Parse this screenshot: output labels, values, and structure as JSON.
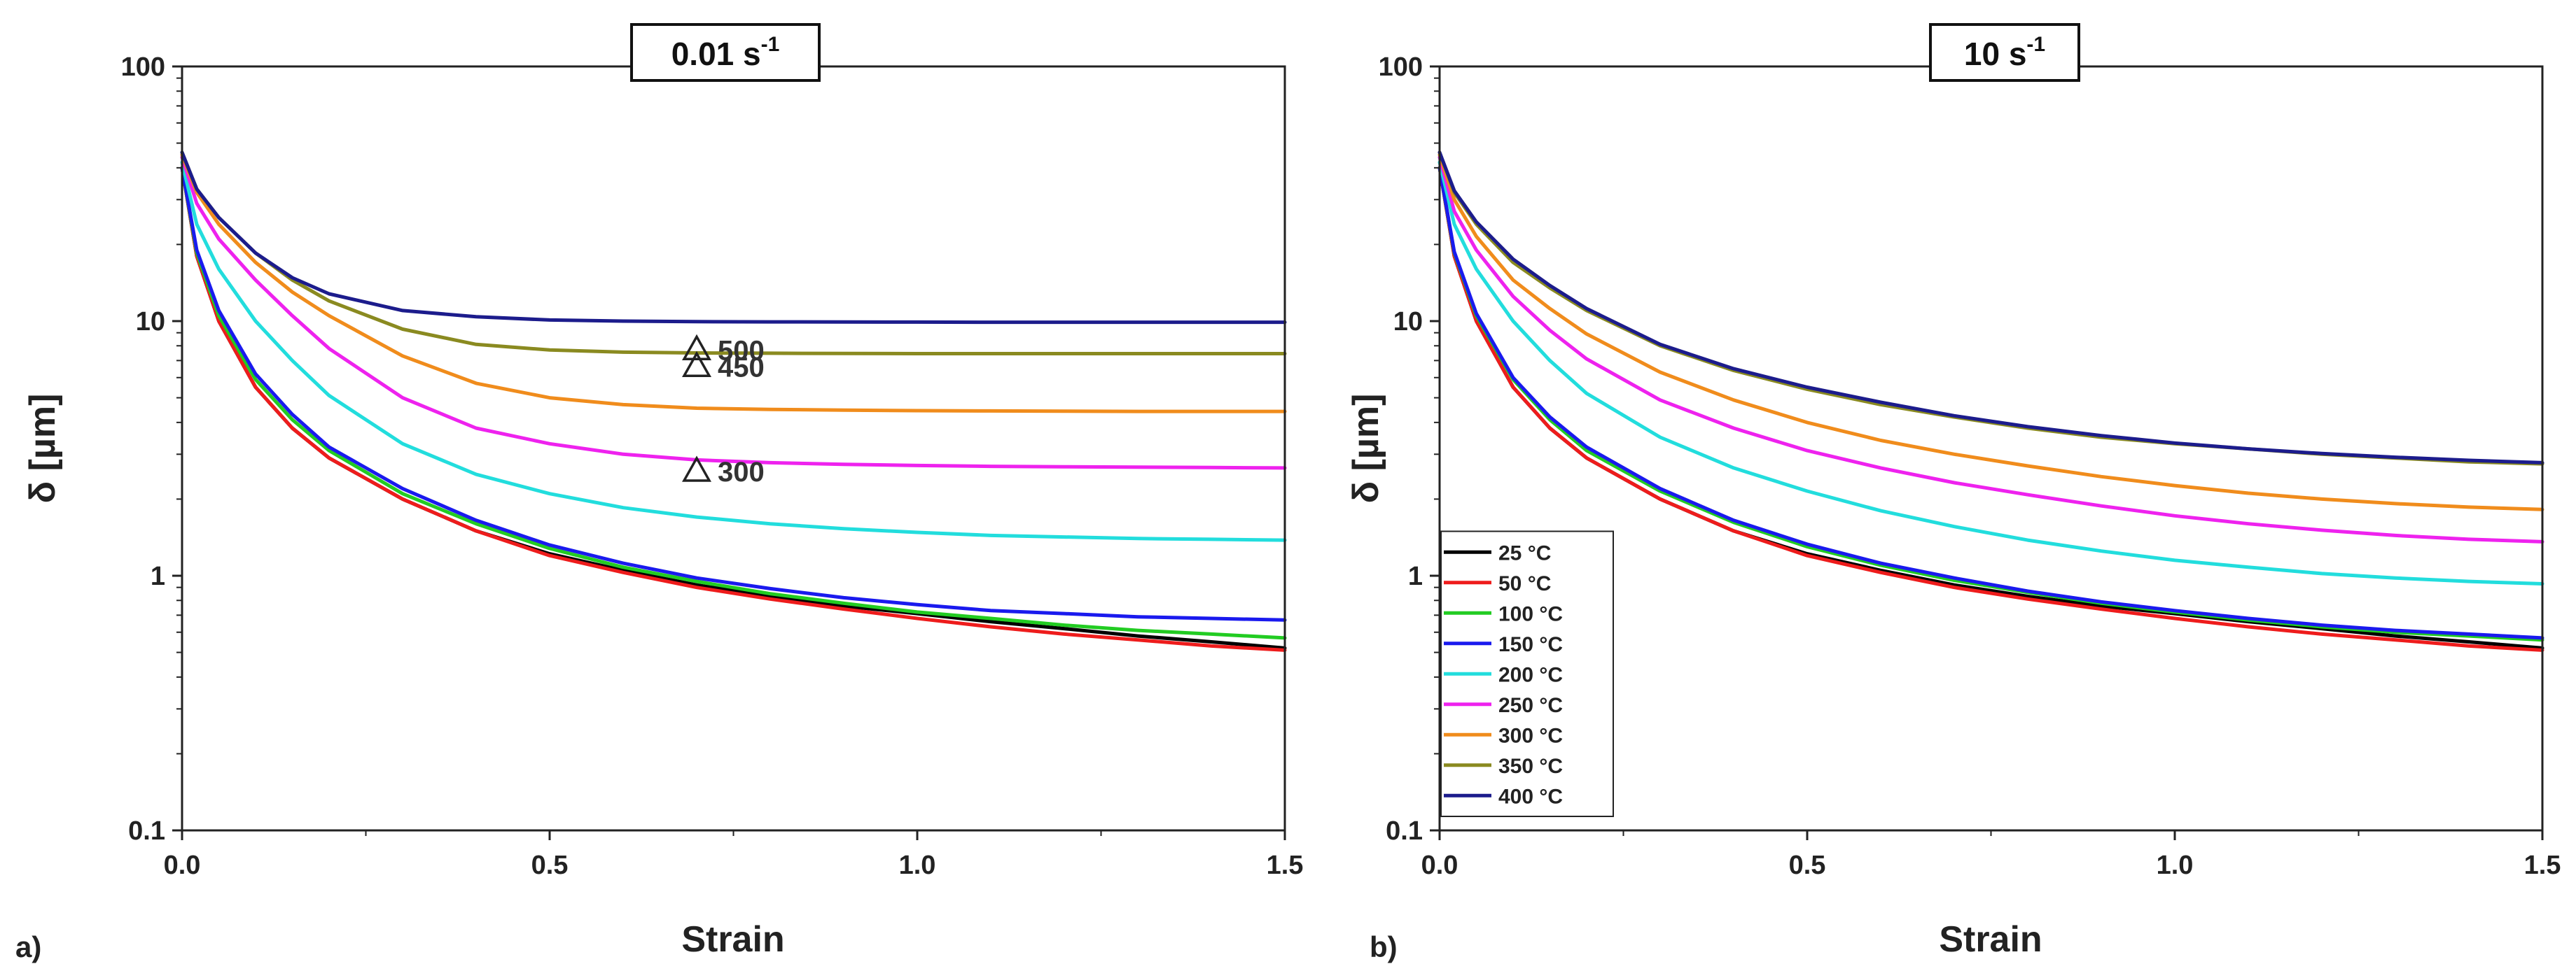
{
  "chart_data": [
    {
      "type": "line",
      "panel_label": "a)",
      "title_main": "0.01 s",
      "title_sup": "-1",
      "xlabel": "Strain",
      "ylabel": "δ [µm]",
      "xlim": [
        0,
        1.5
      ],
      "ylim": [
        0.1,
        100
      ],
      "yscale": "log",
      "xticks": [
        {
          "value": 0,
          "label": "0.0"
        },
        {
          "value": 0.5,
          "label": "0.5"
        },
        {
          "value": 1.0,
          "label": "1.0"
        },
        {
          "value": 1.5,
          "label": "1.5"
        }
      ],
      "yticks": [
        {
          "value": 0.1,
          "label": "0.1"
        },
        {
          "value": 1,
          "label": "1"
        },
        {
          "value": 10,
          "label": "10"
        },
        {
          "value": 100,
          "label": "100"
        }
      ],
      "x": [
        0,
        0.02,
        0.05,
        0.1,
        0.15,
        0.2,
        0.3,
        0.4,
        0.5,
        0.6,
        0.7,
        0.8,
        0.9,
        1.0,
        1.1,
        1.2,
        1.3,
        1.4,
        1.5
      ],
      "series": [
        {
          "name": "25 °C",
          "color": "#000000",
          "values": [
            40,
            18,
            10,
            5.5,
            3.8,
            2.9,
            2.0,
            1.5,
            1.22,
            1.05,
            0.92,
            0.83,
            0.76,
            0.71,
            0.66,
            0.62,
            0.58,
            0.55,
            0.52
          ]
        },
        {
          "name": "50 °C",
          "color": "#ee1c1c",
          "values": [
            40,
            18,
            10,
            5.5,
            3.8,
            2.9,
            2.0,
            1.5,
            1.2,
            1.03,
            0.9,
            0.81,
            0.74,
            0.68,
            0.63,
            0.59,
            0.56,
            0.53,
            0.51
          ]
        },
        {
          "name": "100 °C",
          "color": "#22cc22",
          "values": [
            40,
            18.5,
            10.5,
            5.9,
            4.1,
            3.1,
            2.1,
            1.6,
            1.28,
            1.08,
            0.95,
            0.85,
            0.78,
            0.72,
            0.68,
            0.64,
            0.61,
            0.59,
            0.57
          ]
        },
        {
          "name": "150 °C",
          "color": "#1a1aee",
          "values": [
            40,
            19,
            11,
            6.2,
            4.3,
            3.2,
            2.2,
            1.65,
            1.32,
            1.12,
            0.98,
            0.89,
            0.82,
            0.77,
            0.73,
            0.71,
            0.69,
            0.68,
            0.67
          ]
        },
        {
          "name": "200 °C",
          "color": "#22dddd",
          "values": [
            42,
            24,
            16,
            10,
            7.0,
            5.1,
            3.3,
            2.5,
            2.1,
            1.85,
            1.7,
            1.6,
            1.53,
            1.48,
            1.44,
            1.42,
            1.4,
            1.39,
            1.38
          ]
        },
        {
          "name": "250 °C",
          "color": "#ee22ee",
          "values": [
            44,
            29,
            21,
            14.5,
            10.5,
            7.8,
            5.0,
            3.8,
            3.3,
            3.0,
            2.85,
            2.78,
            2.74,
            2.71,
            2.69,
            2.68,
            2.67,
            2.66,
            2.65
          ]
        },
        {
          "name": "300 °C",
          "color": "#f08c1c",
          "values": [
            45,
            32,
            24,
            17,
            13,
            10.5,
            7.3,
            5.7,
            5.0,
            4.7,
            4.55,
            4.5,
            4.47,
            4.45,
            4.44,
            4.43,
            4.42,
            4.42,
            4.42
          ]
        },
        {
          "name": "350 °C",
          "color": "#8a8a20",
          "values": [
            46,
            33,
            25.5,
            18.5,
            14.5,
            12.0,
            9.3,
            8.1,
            7.7,
            7.55,
            7.5,
            7.48,
            7.46,
            7.45,
            7.45,
            7.45,
            7.45,
            7.45,
            7.45
          ]
        },
        {
          "name": "400 °C",
          "color": "#1c1c8c",
          "values": [
            46,
            33,
            25.5,
            18.5,
            14.8,
            12.8,
            11.0,
            10.4,
            10.1,
            10.0,
            9.95,
            9.93,
            9.92,
            9.91,
            9.9,
            9.9,
            9.9,
            9.9,
            9.9
          ]
        }
      ],
      "annotations": [
        {
          "marker": "triangle",
          "label": "500",
          "x": 0.7,
          "y": 7.8
        },
        {
          "marker": "triangle",
          "label": "450",
          "x": 0.7,
          "y": 6.7
        },
        {
          "marker": "triangle",
          "label": "300",
          "x": 0.7,
          "y": 2.6
        }
      ]
    },
    {
      "type": "line",
      "panel_label": "b)",
      "title_main": "10 s",
      "title_sup": "-1",
      "xlabel": "Strain",
      "ylabel": "δ [µm]",
      "xlim": [
        0,
        1.5
      ],
      "ylim": [
        0.1,
        100
      ],
      "yscale": "log",
      "xticks": [
        {
          "value": 0,
          "label": "0.0"
        },
        {
          "value": 0.5,
          "label": "0.5"
        },
        {
          "value": 1.0,
          "label": "1.0"
        },
        {
          "value": 1.5,
          "label": "1.5"
        }
      ],
      "yticks": [
        {
          "value": 0.1,
          "label": "0.1"
        },
        {
          "value": 1,
          "label": "1"
        },
        {
          "value": 10,
          "label": "10"
        },
        {
          "value": 100,
          "label": "100"
        }
      ],
      "legend_position": "bottom-left",
      "x": [
        0,
        0.02,
        0.05,
        0.1,
        0.15,
        0.2,
        0.3,
        0.4,
        0.5,
        0.6,
        0.7,
        0.8,
        0.9,
        1.0,
        1.1,
        1.2,
        1.3,
        1.4,
        1.5
      ],
      "series": [
        {
          "name": "25 °C",
          "color": "#000000",
          "values": [
            40,
            18,
            10,
            5.5,
            3.8,
            2.9,
            2.0,
            1.5,
            1.22,
            1.05,
            0.92,
            0.83,
            0.76,
            0.71,
            0.66,
            0.62,
            0.58,
            0.55,
            0.52
          ]
        },
        {
          "name": "50 °C",
          "color": "#ee1c1c",
          "values": [
            40,
            18,
            10,
            5.5,
            3.8,
            2.9,
            2.0,
            1.5,
            1.2,
            1.03,
            0.9,
            0.81,
            0.74,
            0.68,
            0.63,
            0.59,
            0.56,
            0.53,
            0.51
          ]
        },
        {
          "name": "100 °C",
          "color": "#22cc22",
          "values": [
            40,
            18.5,
            10.5,
            5.9,
            4.1,
            3.1,
            2.15,
            1.62,
            1.3,
            1.1,
            0.96,
            0.86,
            0.78,
            0.72,
            0.67,
            0.63,
            0.6,
            0.58,
            0.56
          ]
        },
        {
          "name": "150 °C",
          "color": "#1a1aee",
          "values": [
            40,
            18.7,
            10.7,
            6.0,
            4.2,
            3.2,
            2.2,
            1.65,
            1.33,
            1.12,
            0.98,
            0.87,
            0.79,
            0.73,
            0.68,
            0.64,
            0.61,
            0.59,
            0.57
          ]
        },
        {
          "name": "200 °C",
          "color": "#22dddd",
          "values": [
            42,
            24,
            16,
            10,
            7.0,
            5.2,
            3.5,
            2.65,
            2.15,
            1.8,
            1.56,
            1.38,
            1.25,
            1.15,
            1.08,
            1.02,
            0.98,
            0.95,
            0.93
          ]
        },
        {
          "name": "250 °C",
          "color": "#ee22ee",
          "values": [
            44,
            27,
            19,
            12.5,
            9.2,
            7.1,
            4.9,
            3.8,
            3.1,
            2.65,
            2.32,
            2.08,
            1.88,
            1.72,
            1.6,
            1.51,
            1.44,
            1.39,
            1.36
          ]
        },
        {
          "name": "300 °C",
          "color": "#f08c1c",
          "values": [
            45,
            30,
            21.5,
            14.5,
            11.2,
            8.9,
            6.3,
            4.9,
            4.0,
            3.4,
            3.0,
            2.7,
            2.45,
            2.26,
            2.11,
            2.0,
            1.92,
            1.86,
            1.82
          ]
        },
        {
          "name": "350 °C",
          "color": "#8a8a20",
          "values": [
            46,
            32,
            24,
            17,
            13.5,
            11.0,
            8.0,
            6.4,
            5.4,
            4.7,
            4.2,
            3.8,
            3.5,
            3.3,
            3.15,
            3.0,
            2.9,
            2.8,
            2.75
          ]
        },
        {
          "name": "400 °C",
          "color": "#1c1c8c",
          "values": [
            46,
            32.5,
            24.5,
            17.5,
            13.8,
            11.2,
            8.1,
            6.5,
            5.5,
            4.8,
            4.25,
            3.85,
            3.55,
            3.32,
            3.15,
            3.02,
            2.92,
            2.84,
            2.78
          ]
        }
      ]
    }
  ]
}
